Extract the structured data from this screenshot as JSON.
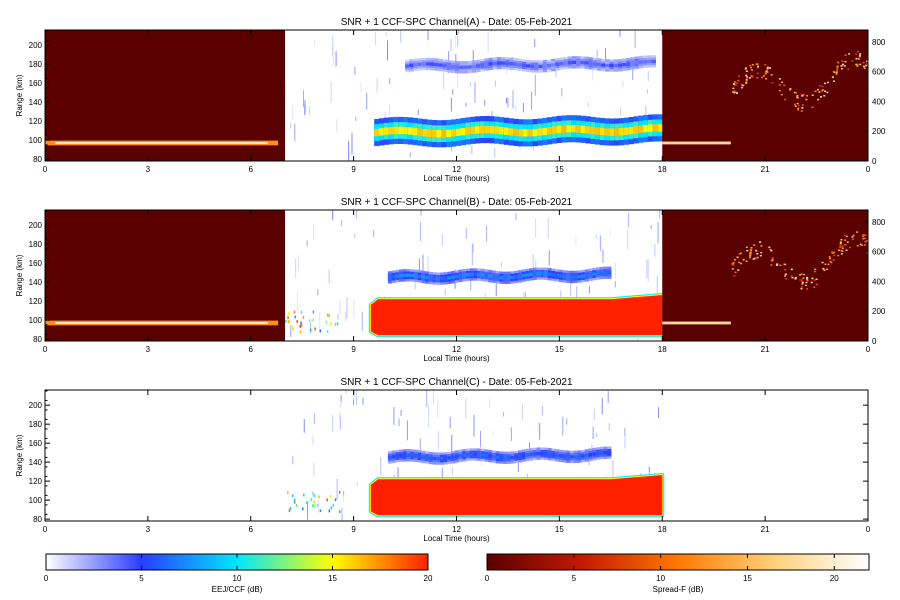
{
  "chart_data": {
    "type": "heatmap",
    "panels": [
      {
        "title": "SNR + 1 CCF-SPC Channel(A) - Date: 05-Feb-2021",
        "xlabel": "Local Time (hours)",
        "ylabel": "Range (km)",
        "xlim": [
          0,
          24
        ],
        "ylim": [
          78,
          216
        ],
        "x_ticks": [
          "0",
          "3",
          "6",
          "9",
          "12",
          "15",
          "18",
          "21",
          "0"
        ],
        "y_ticks": [
          80,
          100,
          120,
          140,
          160,
          180,
          200
        ],
        "right_axis": {
          "ylim": [
            0,
            880
          ],
          "ticks": [
            0,
            200,
            400,
            600,
            800
          ]
        },
        "night_blocks": [
          [
            0,
            7
          ],
          [
            18,
            24
          ]
        ],
        "eej_layers": [
          {
            "t0": 10.5,
            "t1": 17.8,
            "alt": 178,
            "strength": 0.16,
            "thickness": 5
          },
          {
            "t0": 9.6,
            "t1": 18,
            "alt": 108,
            "strength": 0.75,
            "thickness": 11
          }
        ],
        "eej_saturated": null,
        "spread_f_night": true,
        "sporadic_layer": {
          "alt": 97,
          "t0": 0,
          "t1": 6.8
        }
      },
      {
        "title": "SNR + 1 CCF-SPC Channel(B) - Date: 05-Feb-2021",
        "xlabel": "Local Time (hours)",
        "ylabel": "Range (km)",
        "xlim": [
          0,
          24
        ],
        "ylim": [
          78,
          216
        ],
        "x_ticks": [
          "0",
          "3",
          "6",
          "9",
          "12",
          "15",
          "18",
          "21",
          "0"
        ],
        "y_ticks": [
          80,
          100,
          120,
          140,
          160,
          180,
          200
        ],
        "right_axis": {
          "ylim": [
            0,
            880
          ],
          "ticks": [
            0,
            200,
            400,
            600,
            800
          ]
        },
        "night_blocks": [
          [
            0,
            7
          ],
          [
            18,
            24
          ]
        ],
        "eej_layers": [
          {
            "t0": 10,
            "t1": 16.5,
            "alt": 145,
            "strength": 0.3,
            "thickness": 5
          }
        ],
        "eej_saturated": {
          "t0": 9.5,
          "t1": 18,
          "alt0": 84,
          "alt1": 122
        },
        "spread_f_night": true,
        "sporadic_layer": {
          "alt": 97,
          "t0": 0,
          "t1": 6.8
        }
      },
      {
        "title": "SNR + 1 CCF-SPC Channel(C) - Date: 05-Feb-2021",
        "xlabel": "Local Time (hours)",
        "ylabel": "Range (km)",
        "xlim": [
          0,
          24
        ],
        "ylim": [
          78,
          216
        ],
        "x_ticks": [
          "0",
          "3",
          "6",
          "9",
          "12",
          "15",
          "18",
          "21",
          "0"
        ],
        "y_ticks": [
          80,
          100,
          120,
          140,
          160,
          180,
          200
        ],
        "right_axis": null,
        "night_blocks": [],
        "eej_layers": [
          {
            "t0": 10,
            "t1": 16.5,
            "alt": 145,
            "strength": 0.25,
            "thickness": 5
          }
        ],
        "eej_saturated": {
          "t0": 9.5,
          "t1": 18,
          "alt0": 84,
          "alt1": 122
        },
        "spread_f_night": false,
        "sporadic_layer": null
      }
    ],
    "colorbars": [
      {
        "label": "EEJ/CCF (dB)",
        "range": [
          0,
          20
        ],
        "ticks": [
          0,
          5,
          10,
          15,
          20
        ],
        "colors": [
          "#ffffff",
          "#2a3cff",
          "#00e6ff",
          "#ffff00",
          "#ff2000"
        ]
      },
      {
        "label": "Spread-F (dB)",
        "range": [
          0,
          22
        ],
        "ticks": [
          0,
          5,
          10,
          15,
          20
        ],
        "colors": [
          "#5a0000",
          "#c41a00",
          "#ff7a00",
          "#ffd07a",
          "#ffffff"
        ]
      }
    ]
  }
}
